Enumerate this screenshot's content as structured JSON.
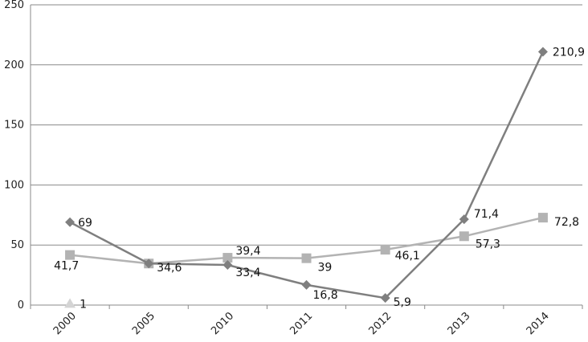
{
  "chart_data": {
    "type": "line",
    "categories": [
      "2000",
      "2005",
      "2010",
      "2011",
      "2012",
      "2013",
      "2014"
    ],
    "ylim": [
      0,
      250
    ],
    "yticks": [
      0,
      50,
      100,
      150,
      200,
      250
    ],
    "grid": "horizontal",
    "series": [
      {
        "marker": "diamond",
        "color": "#7f7f7f",
        "values": [
          69,
          34.6,
          33.4,
          16.8,
          5.9,
          71.4,
          210.9
        ],
        "labels": [
          "69",
          "34,6",
          "33,4",
          "16,8",
          "5,9",
          "71,4",
          "210,9"
        ]
      },
      {
        "marker": "square",
        "color": "#b3b3b3",
        "values": [
          41.7,
          34.6,
          39.4,
          39,
          46.1,
          57.3,
          72.8
        ],
        "labels": [
          "41,7",
          "",
          "39,4",
          "39",
          "46,1",
          "57,3",
          "72,8"
        ]
      },
      {
        "marker": "triangle",
        "color": "#d4d4d4",
        "values": [
          1,
          null,
          null,
          null,
          null,
          null,
          null
        ],
        "labels": [
          "1",
          "",
          "",
          "",
          "",
          "",
          ""
        ]
      }
    ]
  }
}
